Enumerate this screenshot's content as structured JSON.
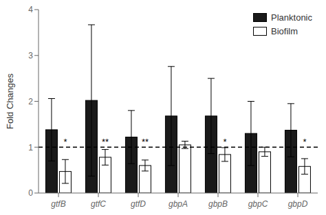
{
  "chart_data": {
    "type": "bar",
    "categories": [
      "gtfB",
      "gtfC",
      "gtfD",
      "gbpA",
      "gbpB",
      "gbpC",
      "gbpD"
    ],
    "series": [
      {
        "name": "Planktonic",
        "color": "#1a1a1a",
        "values": [
          1.38,
          2.02,
          1.22,
          1.68,
          1.68,
          1.3,
          1.37
        ],
        "errors": [
          0.68,
          1.65,
          0.58,
          1.08,
          0.82,
          0.7,
          0.58
        ]
      },
      {
        "name": "Biofilm",
        "color": "#ffffff",
        "values": [
          0.47,
          0.78,
          0.6,
          1.05,
          0.84,
          0.9,
          0.58
        ],
        "errors": [
          0.26,
          0.17,
          0.12,
          0.08,
          0.15,
          0.1,
          0.17
        ]
      }
    ],
    "ylabel": "Fold Changes",
    "ylim": [
      0,
      4
    ],
    "yticks": [
      0,
      1,
      2,
      3,
      4
    ],
    "reference_lines": [
      {
        "y": 1,
        "line_style": "dashed"
      }
    ],
    "annotations": [
      {
        "category": "gtfB",
        "series": "Biofilm",
        "text": "*"
      },
      {
        "category": "gtfC",
        "series": "Biofilm",
        "text": "**"
      },
      {
        "category": "gtfD",
        "series": "Biofilm",
        "text": "**"
      },
      {
        "category": "gbpB",
        "series": "Biofilm",
        "text": "*"
      },
      {
        "category": "gbpD",
        "series": "Biofilm",
        "text": "*"
      }
    ],
    "legend": "upper right"
  }
}
